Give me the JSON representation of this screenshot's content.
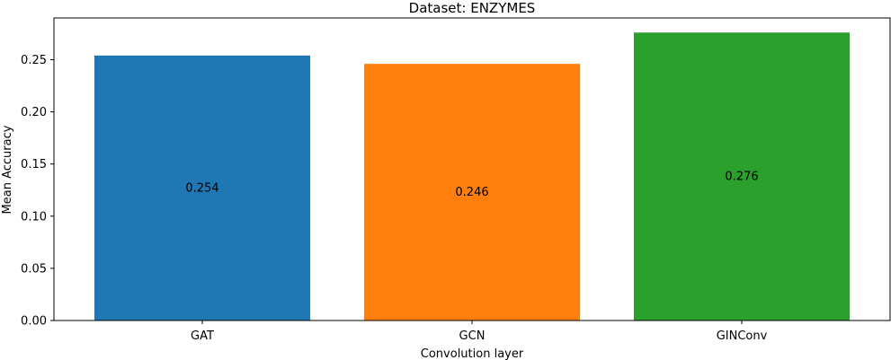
{
  "chart_data": {
    "type": "bar",
    "title": "Dataset: ENZYMES",
    "xlabel": "Convolution layer",
    "ylabel": "Mean Accuracy",
    "categories": [
      "GAT",
      "GCN",
      "GINConv"
    ],
    "values": [
      0.254,
      0.246,
      0.276
    ],
    "value_labels": [
      "0.254",
      "0.246",
      "0.276"
    ],
    "colors": [
      "#1f77b4",
      "#ff7f0e",
      "#2ca02c"
    ],
    "ylim": [
      0,
      0.29
    ],
    "yticks": [
      0.0,
      0.05,
      0.1,
      0.15,
      0.2,
      0.25
    ],
    "ytick_labels": [
      "0.00",
      "0.05",
      "0.10",
      "0.15",
      "0.20",
      "0.25"
    ],
    "grid": false,
    "legend": "none"
  }
}
